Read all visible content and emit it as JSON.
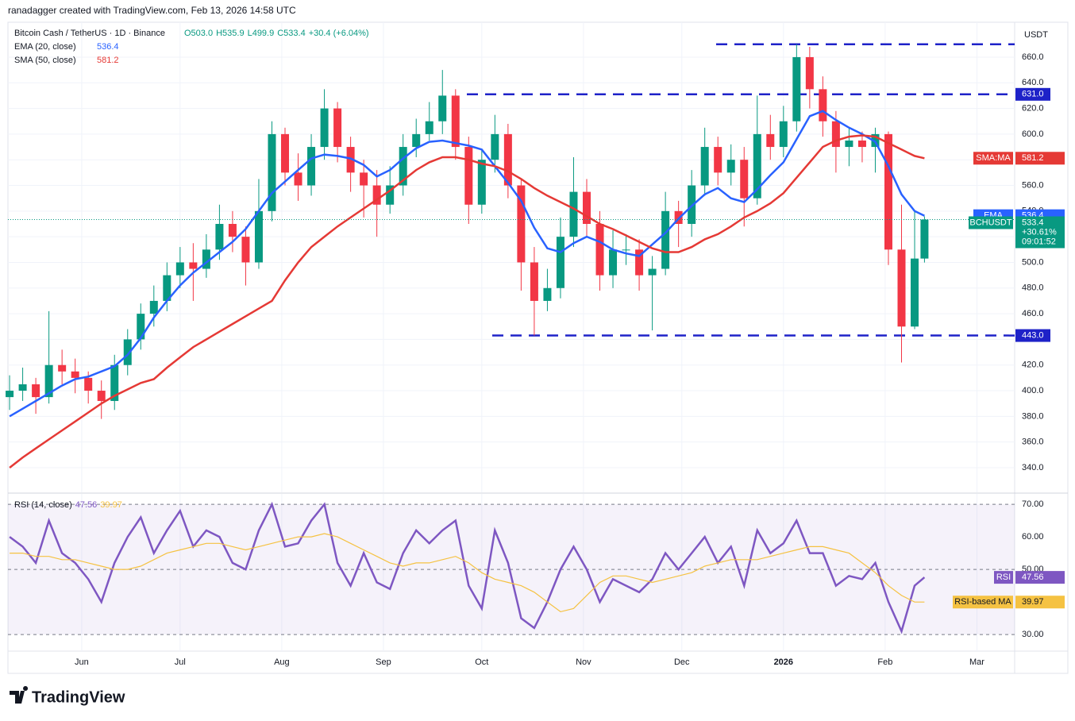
{
  "header": "ranadagger created with TradingView.com, Feb 13, 2026 14:58 UTC",
  "footer": "TradingView",
  "chart_data": {
    "type": "candlestick",
    "title": "Bitcoin Cash / TetherUS · 1D · Binance",
    "ohlc_labels": [
      "O503.0",
      "H535.9",
      "L499.9",
      "C533.4",
      "+30.4 (+6.04%)"
    ],
    "currency": "USDT",
    "x": [
      0,
      4,
      8,
      12,
      16,
      20,
      24,
      28,
      32,
      36,
      40,
      44,
      48,
      52,
      56,
      60,
      64,
      68,
      72,
      76,
      80,
      84,
      88,
      92,
      96,
      100,
      104,
      108,
      112,
      116,
      120,
      124,
      128,
      132,
      136,
      140,
      144,
      148,
      152,
      156,
      160,
      164,
      168,
      172,
      176,
      180,
      184,
      188,
      192,
      196,
      200,
      204,
      208,
      212,
      216,
      220,
      224,
      228,
      232,
      236,
      240,
      244,
      248,
      252,
      256,
      260,
      264,
      268,
      272,
      276,
      279
    ],
    "open": [
      395,
      400,
      405,
      395,
      420,
      415,
      410,
      400,
      392,
      420,
      440,
      460,
      470,
      490,
      500,
      495,
      510,
      530,
      520,
      500,
      540,
      600,
      570,
      560,
      590,
      620,
      590,
      570,
      560,
      545,
      560,
      590,
      600,
      610,
      630,
      590,
      545,
      580,
      600,
      560,
      500,
      470,
      480,
      520,
      555,
      530,
      490,
      510,
      510,
      490,
      495,
      540,
      530,
      560,
      590,
      570,
      580,
      550,
      600,
      590,
      610,
      660,
      635,
      610,
      590,
      595,
      590,
      600,
      510,
      450,
      503
    ],
    "high": [
      412,
      418,
      410,
      462,
      432,
      425,
      415,
      408,
      428,
      448,
      468,
      482,
      500,
      512,
      515,
      522,
      545,
      540,
      528,
      565,
      610,
      605,
      585,
      600,
      635,
      625,
      598,
      580,
      572,
      575,
      600,
      612,
      625,
      650,
      635,
      598,
      588,
      615,
      608,
      565,
      512,
      495,
      535,
      582,
      565,
      540,
      525,
      522,
      518,
      505,
      555,
      548,
      572,
      605,
      598,
      592,
      590,
      630,
      615,
      622,
      670,
      668,
      645,
      618,
      605,
      602,
      605,
      602,
      545,
      540,
      535.9
    ],
    "low": [
      385,
      392,
      382,
      390,
      405,
      398,
      390,
      378,
      385,
      412,
      432,
      450,
      462,
      480,
      470,
      488,
      502,
      508,
      482,
      495,
      532,
      560,
      548,
      552,
      580,
      578,
      555,
      535,
      520,
      538,
      552,
      582,
      595,
      600,
      580,
      530,
      538,
      570,
      550,
      478,
      443,
      462,
      472,
      512,
      520,
      478,
      480,
      498,
      478,
      447,
      490,
      512,
      520,
      552,
      560,
      560,
      528,
      545,
      580,
      582,
      602,
      620,
      598,
      570,
      575,
      578,
      570,
      498,
      422,
      448,
      499.9
    ],
    "close": [
      400,
      405,
      395,
      420,
      415,
      410,
      400,
      392,
      420,
      440,
      460,
      470,
      490,
      500,
      495,
      510,
      530,
      520,
      500,
      540,
      600,
      570,
      560,
      590,
      620,
      590,
      570,
      560,
      545,
      560,
      590,
      600,
      610,
      630,
      590,
      545,
      580,
      600,
      560,
      500,
      470,
      480,
      520,
      555,
      530,
      490,
      510,
      510,
      490,
      495,
      540,
      530,
      560,
      590,
      570,
      580,
      550,
      600,
      590,
      610,
      660,
      635,
      610,
      590,
      595,
      590,
      600,
      510,
      450,
      503,
      533.4
    ],
    "up_color": "#089981",
    "down_color": "#f23645",
    "series": [
      {
        "name": "EMA (20, close)",
        "short": "EMA",
        "color": "#2962ff",
        "values": [
          380,
          386,
          392,
          398,
          404,
          409,
          411,
          415,
          419,
          428,
          441,
          457,
          470,
          482,
          492,
          500,
          508,
          516,
          526,
          540,
          554,
          563,
          572,
          581,
          584,
          583,
          581,
          576,
          567,
          572,
          581,
          589,
          594,
          595,
          593,
          591,
          588,
          575,
          562,
          548,
          527,
          511,
          508,
          515,
          520,
          516,
          510,
          507,
          505,
          514,
          523,
          534,
          544,
          553,
          558,
          550,
          547,
          557,
          568,
          578,
          596,
          614,
          618,
          611,
          605,
          600,
          594,
          575,
          553,
          540,
          536.4
        ]
      },
      {
        "name": "SMA (50, close)",
        "short": "SMA:MA",
        "color": "#e53935",
        "values": [
          340,
          348,
          355,
          362,
          369,
          376,
          383,
          390,
          396,
          401,
          406,
          409,
          418,
          426,
          434,
          440,
          446,
          452,
          458,
          464,
          470,
          486,
          500,
          512,
          520,
          528,
          535,
          542,
          549,
          556,
          564,
          572,
          578,
          582,
          582,
          580,
          577,
          575,
          571,
          565,
          558,
          552,
          547,
          542,
          536,
          530,
          526,
          521,
          516,
          511,
          508,
          508,
          512,
          518,
          522,
          528,
          535,
          540,
          546,
          554,
          566,
          578,
          590,
          595,
          598,
          599,
          598,
          593,
          588,
          583,
          581.2
        ]
      }
    ],
    "price_tag": {
      "symbol": "BCHUSDT",
      "change": "+30.61%",
      "countdown": "09:01:52"
    },
    "xlim": [
      -0.5,
      306.5
    ],
    "xticks": [
      {
        "value": 22,
        "label": "Jun"
      },
      {
        "value": 52,
        "label": "Jul"
      },
      {
        "value": 83,
        "label": "Aug"
      },
      {
        "value": 114,
        "label": "Sep"
      },
      {
        "value": 144,
        "label": "Oct"
      },
      {
        "value": 175,
        "label": "Nov"
      },
      {
        "value": 205,
        "label": "Dec"
      },
      {
        "value": 236,
        "label": "2026"
      },
      {
        "value": 267,
        "label": "Feb"
      },
      {
        "value": 295,
        "label": "Mar"
      }
    ],
    "ylim": [
      320.8,
      687.2
    ],
    "yticks": [
      {
        "value": 340,
        "label": "340.0"
      },
      {
        "value": 360,
        "label": "360.0"
      },
      {
        "value": 380,
        "label": "380.0"
      },
      {
        "value": 400,
        "label": "400.0"
      },
      {
        "value": 420,
        "label": "420.0"
      },
      {
        "value": 440,
        "label": "440.0"
      },
      {
        "value": 460,
        "label": "460.0"
      },
      {
        "value": 480,
        "label": "480.0"
      },
      {
        "value": 500,
        "label": "500.0"
      },
      {
        "value": 520,
        "label": "520.0"
      },
      {
        "value": 540,
        "label": "540.0"
      },
      {
        "value": 560,
        "label": "560.0"
      },
      {
        "value": 580,
        "label": "580.0"
      },
      {
        "value": 600,
        "label": "600.0"
      },
      {
        "value": 620,
        "label": "620.0"
      },
      {
        "value": 640,
        "label": "640.0"
      },
      {
        "value": 660,
        "label": "660.0"
      }
    ],
    "levels": [
      670,
      {
        "value": 631,
        "label": "631.0"
      },
      {
        "value": 443,
        "label": "443.0"
      }
    ],
    "rsi": {
      "title": "RSI (14, close)",
      "ylim": [
        24.9,
        73.2
      ],
      "yticks": [
        {
          "value": 30,
          "label": "30.00"
        },
        {
          "value": 40,
          "label": "40.00"
        },
        {
          "value": 50,
          "label": "50.00"
        },
        {
          "value": 60,
          "label": "60.00"
        },
        {
          "value": 70,
          "label": "70.00"
        }
      ],
      "levels": [
        70,
        50,
        30
      ],
      "series": [
        {
          "name": "RSI",
          "color": "#7e57c2",
          "values": [
            60,
            57,
            52,
            65,
            55,
            52,
            47,
            40,
            52,
            60,
            66,
            55,
            62,
            68,
            57,
            62,
            60,
            52,
            50,
            62,
            70,
            57,
            58,
            65,
            70,
            52,
            45,
            55,
            46,
            44,
            55,
            62,
            58,
            62,
            65,
            45,
            38,
            62,
            52,
            35,
            32,
            40,
            50,
            57,
            50,
            40,
            47,
            45,
            43,
            47,
            55,
            50,
            55,
            60,
            52,
            57,
            45,
            62,
            55,
            58,
            65,
            55,
            55,
            45,
            48,
            47,
            52,
            40,
            31,
            45,
            47.56
          ]
        },
        {
          "name": "RSI-based MA",
          "color": "#f5c242",
          "values": [
            55,
            55,
            54,
            54,
            53,
            53,
            52,
            51,
            50,
            50,
            51,
            53,
            55,
            56,
            57,
            58,
            58,
            57,
            56,
            57,
            58,
            59,
            60,
            60,
            61,
            60,
            58,
            56,
            54,
            52,
            51,
            52,
            52,
            53,
            54,
            52,
            49,
            47,
            46,
            45,
            43,
            40,
            37,
            38,
            42,
            46,
            48,
            48,
            47,
            46,
            47,
            48,
            49,
            51,
            52,
            53,
            53,
            53,
            54,
            55,
            56,
            57,
            57,
            56,
            55,
            52,
            49,
            45,
            42,
            40,
            39.97
          ]
        }
      ]
    }
  }
}
